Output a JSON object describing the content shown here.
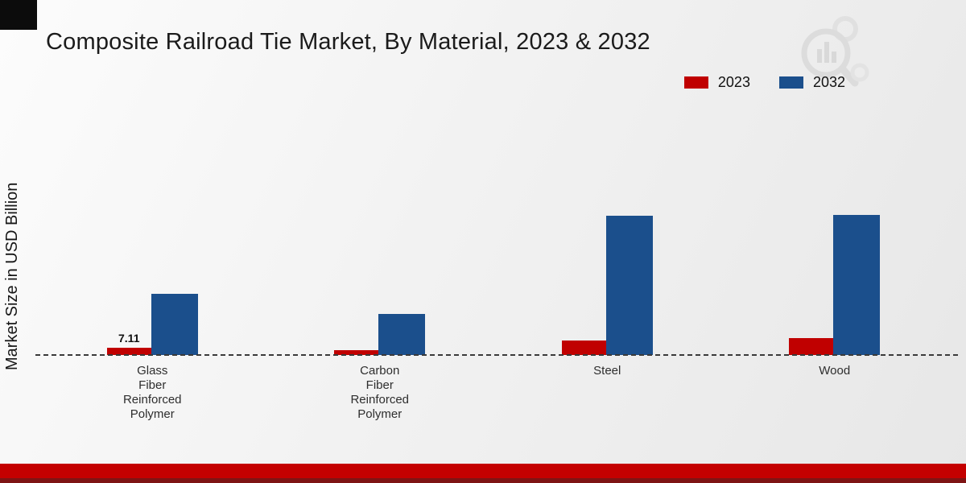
{
  "theme": {
    "color_2023": "#c00000",
    "color_2032": "#1b4f8c",
    "footer_red": "#c40000",
    "footer_dark": "#7e1414",
    "background_top": "#fcfcfc",
    "background_bottom": "#e7e7e7"
  },
  "chart_data": {
    "type": "bar",
    "title": "Composite Railroad Tie Market, By Material, 2023 & 2032",
    "xlabel": "",
    "ylabel": "Market Size in USD Billion",
    "ylim": [
      0,
      150
    ],
    "grid": false,
    "legend_position": "top-right",
    "baseline_style": "dashed",
    "categories": [
      "Glass Fiber Reinforced Polymer",
      "Carbon Fiber Reinforced Polymer",
      "Steel",
      "Wood"
    ],
    "categories_display": [
      [
        "Glass",
        "Fiber",
        "Reinforced",
        "Polymer"
      ],
      [
        "Carbon",
        "Fiber",
        "Reinforced",
        "Polymer"
      ],
      [
        "Steel"
      ],
      [
        "Wood"
      ]
    ],
    "series": [
      {
        "name": "2023",
        "color": "#c00000",
        "values": [
          7.11,
          4.8,
          14.3,
          16.6
        ]
      },
      {
        "name": "2032",
        "color": "#1b4f8c",
        "values": [
          60.4,
          40.5,
          137.2,
          137.8
        ]
      }
    ],
    "annotations": [
      {
        "series": "2023",
        "category_index": 0,
        "text": "7.11"
      }
    ]
  }
}
